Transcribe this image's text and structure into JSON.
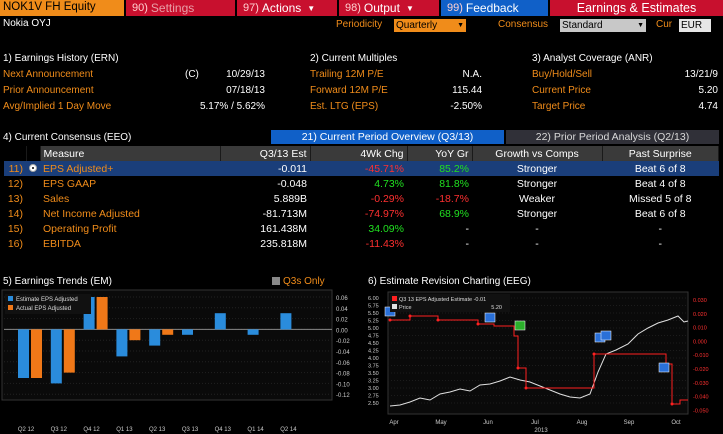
{
  "topbar": {
    "ticker": "NOK1V FH Equity",
    "buttons": [
      {
        "num": "90)",
        "label": "Settings",
        "caret": false
      },
      {
        "num": "97)",
        "label": "Actions",
        "caret": true
      },
      {
        "num": "98)",
        "label": "Output",
        "caret": true
      },
      {
        "num": "99)",
        "label": "Feedback",
        "caret": false
      }
    ],
    "right_title": "Earnings & Estimates"
  },
  "subbar": {
    "company": "Nokia OYJ",
    "periodicity_label": "Periodicity",
    "periodicity_value": "Quarterly",
    "consensus_label": "Consensus",
    "consensus_value": "Standard",
    "cur_label": "Cur",
    "cur_value": "EUR"
  },
  "earnings_history": {
    "title": "1) Earnings History (ERN)",
    "rows": [
      {
        "label": "Next Announcement",
        "flag": "(C)",
        "value": "10/29/13"
      },
      {
        "label": "Prior Announcement",
        "flag": "",
        "value": "07/18/13"
      },
      {
        "label": "Avg/Implied 1 Day Move",
        "flag": "",
        "value": "5.17% / 5.62%"
      }
    ]
  },
  "current_multiples": {
    "title": "2) Current Multiples",
    "rows": [
      {
        "label": "Trailing 12M P/E",
        "value": "N.A."
      },
      {
        "label": "Forward 12M P/E",
        "value": "115.44"
      },
      {
        "label": "Est. LTG (EPS)",
        "value": "-2.50%"
      }
    ]
  },
  "analyst_coverage": {
    "title": "3) Analyst Coverage (ANR)",
    "rows": [
      {
        "label": "Buy/Hold/Sell",
        "value": "13/21/9"
      },
      {
        "label": "Current Price",
        "value": "5.20"
      },
      {
        "label": "Target Price",
        "value": "4.74"
      }
    ]
  },
  "current_consensus": {
    "title": "4) Current Consensus (EEO)",
    "tab_active": "21) Current Period Overview (Q3/13)",
    "tab_inactive": "22) Prior Period Analysis (Q2/13)",
    "headers": [
      "Measure",
      "Q3/13 Est",
      "4Wk Chg",
      "YoY Gr",
      "Growth vs Comps",
      "Past Surprise"
    ],
    "rows": [
      {
        "idx": "11)",
        "measure": "EPS Adjusted+",
        "est": "-0.011",
        "chg": "-45.71%",
        "chg_color": "#ff3030",
        "yoy": "85.2%",
        "yoy_color": "#20e020",
        "growth": "Stronger",
        "surprise": "Beat 6 of 8",
        "selected": true
      },
      {
        "idx": "12)",
        "measure": "EPS GAAP",
        "est": "-0.048",
        "chg": "4.73%",
        "chg_color": "#20e020",
        "yoy": "81.8%",
        "yoy_color": "#20e020",
        "growth": "Stronger",
        "surprise": "Beat 4 of 8",
        "selected": false
      },
      {
        "idx": "13)",
        "measure": "Sales",
        "est": "5.889B",
        "chg": "-0.29%",
        "chg_color": "#ff3030",
        "yoy": "-18.7%",
        "yoy_color": "#ff3030",
        "growth": "Weaker",
        "surprise": "Missed 5 of 8",
        "selected": false
      },
      {
        "idx": "14)",
        "measure": "Net Income Adjusted",
        "est": "-81.713M",
        "chg": "-74.97%",
        "chg_color": "#ff3030",
        "yoy": "68.9%",
        "yoy_color": "#20e020",
        "growth": "Stronger",
        "surprise": "Beat 6 of 8",
        "selected": false
      },
      {
        "idx": "15)",
        "measure": "Operating Profit",
        "est": "161.438M",
        "chg": "34.09%",
        "chg_color": "#20e020",
        "yoy": "-",
        "yoy_color": "#ffffff",
        "growth": "-",
        "surprise": "-",
        "selected": false
      },
      {
        "idx": "16)",
        "measure": "EBITDA",
        "est": "235.818M",
        "chg": "-11.43%",
        "chg_color": "#ff3030",
        "yoy": "-",
        "yoy_color": "#ffffff",
        "growth": "-",
        "surprise": "-",
        "selected": false
      }
    ]
  },
  "earnings_trends": {
    "title": "5) Earnings Trends (EM)",
    "q3s_label": "Q3s Only",
    "legend": [
      {
        "name": "Estimate EPS Adjusted",
        "color": "#2a8cdc"
      },
      {
        "name": "Actual EPS Adjusted",
        "color": "#f07818"
      }
    ],
    "quarters": [
      "Q2 12",
      "",
      "Q3 12",
      "",
      "Q4 12",
      "",
      "Q1 13",
      "",
      "Q2 13",
      "",
      "Q3 13",
      "",
      "Q4 13",
      "",
      "Q1 14",
      "",
      "Q2 14",
      ""
    ],
    "estimate": [
      -0.09,
      -0.1,
      0.06,
      -0.05,
      -0.03,
      -0.01,
      0.03,
      -0.01,
      0.03
    ],
    "actual": [
      -0.09,
      -0.08,
      0.06,
      -0.02,
      -0.01,
      null,
      null,
      null,
      null
    ],
    "yaxis": [
      "0.06",
      "0.04",
      "0.02",
      "0.00",
      "-0.02",
      "-0.04",
      "-0.06",
      "-0.08",
      "-0.10",
      "-0.12"
    ]
  },
  "revision_chart": {
    "title": "6) Estimate Revision Charting (EEG)",
    "legend_estimate": "Q3 13 EPS Adjusted Estimate -0.01",
    "legend_price": "Price",
    "legend_price_value": "5.20",
    "left_axis": [
      "6.00",
      "5.75",
      "5.50",
      "5.25",
      "5.00",
      "4.75",
      "4.50",
      "4.25",
      "4.00",
      "3.75",
      "3.50",
      "3.25",
      "3.00",
      "2.75",
      "2.50"
    ],
    "right_axis": [
      "0.030",
      "0.020",
      "0.010",
      "0.000",
      "-0.010",
      "-0.020",
      "-0.030",
      "-0.040",
      "-0.050"
    ],
    "months": [
      "Apr",
      "May",
      "Jun",
      "Jul",
      "Aug",
      "Sep",
      "Oct"
    ],
    "year": "2013",
    "colors": {
      "estimate": "#ff2020",
      "price": "#e0e0e0"
    }
  }
}
